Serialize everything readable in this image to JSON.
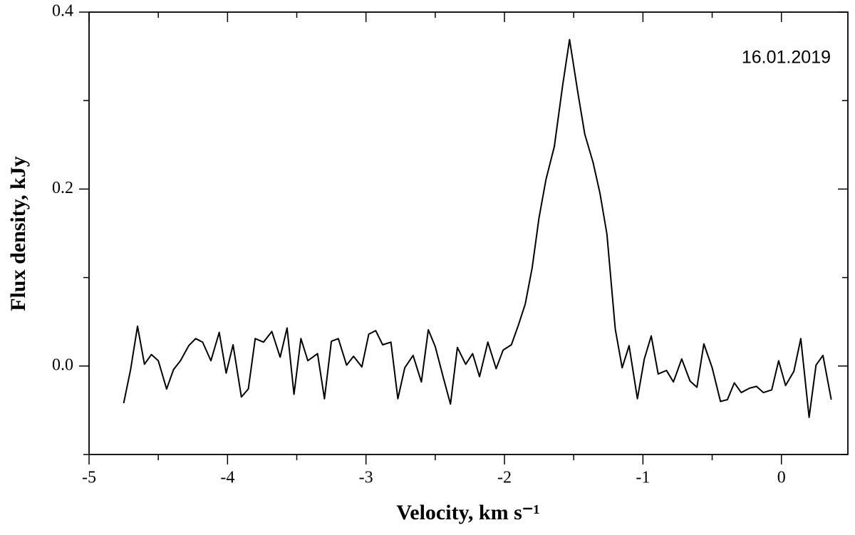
{
  "chart_data": {
    "type": "line",
    "annotation": "16.01.2019",
    "x_label": "Velocity, km s⁻¹",
    "y_label": "Flux density, kJy",
    "xlim": [
      -5,
      0.48
    ],
    "ylim": [
      -0.1,
      0.4
    ],
    "xticks": [
      -5,
      -4,
      -3,
      -2,
      -1,
      0
    ],
    "x_minor_ticks": [
      -4.5,
      -3.5,
      -2.5,
      -1.5,
      -0.5
    ],
    "yticks": [
      {
        "value": 0,
        "label": "0.0"
      },
      0.2,
      0.4
    ],
    "y_minor_ticks": [
      -0.1,
      0.1,
      0.3
    ],
    "grid": false,
    "series": [
      {
        "color": "#000000",
        "x": [
          -4.75,
          -4.7,
          -4.65,
          -4.6,
          -4.55,
          -4.5,
          -4.44,
          -4.39,
          -4.34,
          -4.28,
          -4.23,
          -4.18,
          -4.12,
          -4.06,
          -4.01,
          -3.96,
          -3.9,
          -3.85,
          -3.8,
          -3.74,
          -3.68,
          -3.62,
          -3.57,
          -3.52,
          -3.47,
          -3.42,
          -3.35,
          -3.3,
          -3.25,
          -3.2,
          -3.14,
          -3.09,
          -3.03,
          -2.98,
          -2.93,
          -2.88,
          -2.82,
          -2.77,
          -2.72,
          -2.66,
          -2.6,
          -2.55,
          -2.5,
          -2.44,
          -2.39,
          -2.34,
          -2.28,
          -2.23,
          -2.18,
          -2.12,
          -2.06,
          -2.01,
          -1.95,
          -1.9,
          -1.85,
          -1.8,
          -1.75,
          -1.7,
          -1.64,
          -1.58,
          -1.53,
          -1.47,
          -1.42,
          -1.36,
          -1.31,
          -1.26,
          -1.2,
          -1.15,
          -1.1,
          -1.04,
          -0.99,
          -0.94,
          -0.89,
          -0.83,
          -0.78,
          -0.72,
          -0.66,
          -0.61,
          -0.56,
          -0.5,
          -0.44,
          -0.39,
          -0.34,
          -0.29,
          -0.23,
          -0.18,
          -0.13,
          -0.07,
          -0.02,
          0.03,
          0.09,
          0.14,
          0.2,
          0.25,
          0.3,
          0.36
        ],
        "values": [
          -0.042,
          -0.004,
          0.045,
          0.002,
          0.013,
          0.006,
          -0.026,
          -0.004,
          0.006,
          0.023,
          0.031,
          0.027,
          0.006,
          0.038,
          -0.008,
          0.024,
          -0.035,
          -0.026,
          0.031,
          0.027,
          0.039,
          0.01,
          0.043,
          -0.032,
          0.031,
          0.006,
          0.014,
          -0.037,
          0.028,
          0.031,
          0.001,
          0.011,
          -0.001,
          0.036,
          0.04,
          0.024,
          0.027,
          -0.037,
          -0.002,
          0.012,
          -0.018,
          0.041,
          0.022,
          -0.014,
          -0.043,
          0.021,
          0.002,
          0.014,
          -0.012,
          0.027,
          -0.003,
          0.018,
          0.024,
          0.046,
          0.07,
          0.111,
          0.168,
          0.211,
          0.248,
          0.317,
          0.369,
          0.309,
          0.262,
          0.23,
          0.195,
          0.149,
          0.042,
          -0.002,
          0.023,
          -0.037,
          0.008,
          0.034,
          -0.009,
          -0.005,
          -0.018,
          0.008,
          -0.017,
          -0.024,
          0.025,
          -0.002,
          -0.04,
          -0.038,
          -0.019,
          -0.03,
          -0.025,
          -0.023,
          -0.03,
          -0.027,
          0.006,
          -0.022,
          -0.006,
          0.031,
          -0.058,
          0.001,
          0.012,
          -0.038
        ]
      }
    ]
  }
}
